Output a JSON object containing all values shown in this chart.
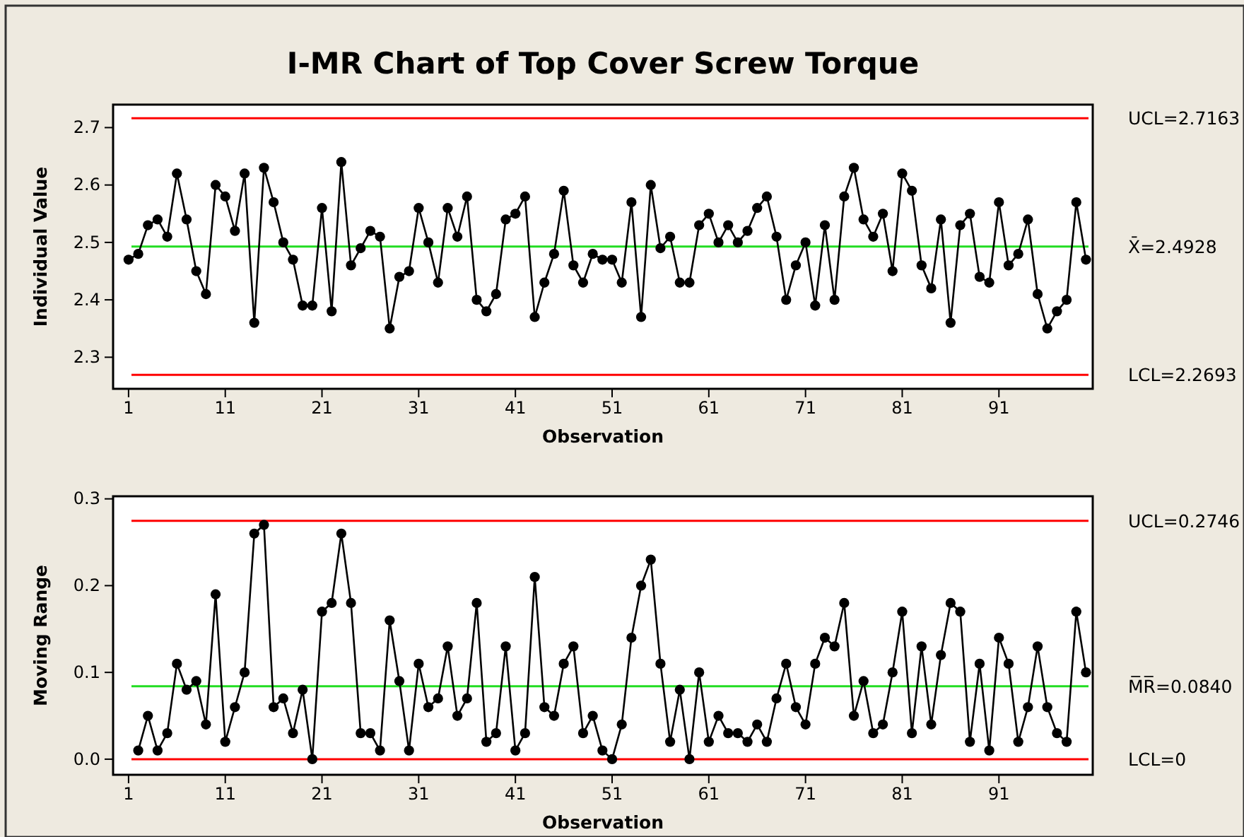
{
  "chart_data": [
    {
      "type": "line",
      "title": "I-MR Chart of Top Cover Screw Torque",
      "xlabel": "Observation",
      "ylabel": "Individual Value",
      "marker": "circle",
      "grid": false,
      "x": [
        1,
        2,
        3,
        4,
        5,
        6,
        7,
        8,
        9,
        10,
        11,
        12,
        13,
        14,
        15,
        16,
        17,
        18,
        19,
        20,
        21,
        22,
        23,
        24,
        25,
        26,
        27,
        28,
        29,
        30,
        31,
        32,
        33,
        34,
        35,
        36,
        37,
        38,
        39,
        40,
        41,
        42,
        43,
        44,
        45,
        46,
        47,
        48,
        49,
        50,
        51,
        52,
        53,
        54,
        55,
        56,
        57,
        58,
        59,
        60,
        61,
        62,
        63,
        64,
        65,
        66,
        67,
        68,
        69,
        70,
        71,
        72,
        73,
        74,
        75,
        76,
        77,
        78,
        79,
        80,
        81,
        82,
        83,
        84,
        85,
        86,
        87,
        88,
        89,
        90,
        91,
        92,
        93,
        94,
        95,
        96,
        97,
        98,
        99,
        100
      ],
      "xlim": [
        -0.6,
        100.7
      ],
      "xticks": [
        1,
        11,
        21,
        31,
        41,
        51,
        61,
        71,
        81,
        91
      ],
      "ylim": [
        2.245,
        2.74
      ],
      "yticks": [
        2.3,
        2.4,
        2.5,
        2.6,
        2.7
      ],
      "series": [
        {
          "color": "#000000",
          "values": [
            2.47,
            2.48,
            2.53,
            2.54,
            2.51,
            2.62,
            2.54,
            2.45,
            2.41,
            2.6,
            2.58,
            2.52,
            2.62,
            2.36,
            2.63,
            2.57,
            2.5,
            2.47,
            2.39,
            2.39,
            2.56,
            2.38,
            2.64,
            2.46,
            2.49,
            2.52,
            2.51,
            2.35,
            2.44,
            2.45,
            2.56,
            2.5,
            2.43,
            2.56,
            2.51,
            2.58,
            2.4,
            2.38,
            2.41,
            2.54,
            2.55,
            2.58,
            2.37,
            2.43,
            2.48,
            2.59,
            2.46,
            2.43,
            2.48,
            2.47,
            2.47,
            2.43,
            2.57,
            2.37,
            2.6,
            2.49,
            2.51,
            2.43,
            2.43,
            2.53,
            2.55,
            2.5,
            2.53,
            2.5,
            2.52,
            2.56,
            2.58,
            2.51,
            2.4,
            2.46,
            2.5,
            2.39,
            2.53,
            2.4,
            2.58,
            2.63,
            2.54,
            2.51,
            2.55,
            2.45,
            2.62,
            2.59,
            2.46,
            2.42,
            2.54,
            2.36,
            2.53,
            2.55,
            2.44,
            2.43,
            2.57,
            2.46,
            2.48,
            2.54,
            2.41,
            2.35,
            2.38,
            2.4,
            2.57,
            2.47
          ]
        }
      ],
      "ref_lines": [
        {
          "axis": "y",
          "value": 2.7163,
          "label": "UCL=2.7163",
          "color": "#ff0000"
        },
        {
          "axis": "y",
          "value": 2.4928,
          "label": "X̄=2.4928",
          "color": "#22dd22"
        },
        {
          "axis": "y",
          "value": 2.2693,
          "label": "LCL=2.2693",
          "color": "#ff0000"
        }
      ]
    },
    {
      "type": "line",
      "xlabel": "Observation",
      "ylabel": "Moving Range",
      "marker": "circle",
      "grid": false,
      "xlim": [
        -0.6,
        100.7
      ],
      "xticks": [
        1,
        11,
        21,
        31,
        41,
        51,
        61,
        71,
        81,
        91
      ],
      "ylim": [
        -0.018,
        0.303
      ],
      "yticks": [
        {
          "value": 0,
          "label": "0.0"
        },
        0.1,
        0.2,
        0.3
      ],
      "series": [
        {
          "color": "#000000",
          "x": [
            2,
            3,
            4,
            5,
            6,
            7,
            8,
            9,
            10,
            11,
            12,
            13,
            14,
            15,
            16,
            17,
            18,
            19,
            20,
            21,
            22,
            23,
            24,
            25,
            26,
            27,
            28,
            29,
            30,
            31,
            32,
            33,
            34,
            35,
            36,
            37,
            38,
            39,
            40,
            41,
            42,
            43,
            44,
            45,
            46,
            47,
            48,
            49,
            50,
            51,
            52,
            53,
            54,
            55,
            56,
            57,
            58,
            59,
            60,
            61,
            62,
            63,
            64,
            65,
            66,
            67,
            68,
            69,
            70,
            71,
            72,
            73,
            74,
            75,
            76,
            77,
            78,
            79,
            80,
            81,
            82,
            83,
            84,
            85,
            86,
            87,
            88,
            89,
            90,
            91,
            92,
            93,
            94,
            95,
            96,
            97,
            98,
            99,
            100
          ],
          "values": [
            0.01,
            0.05,
            0.01,
            0.03,
            0.11,
            0.08,
            0.09,
            0.04,
            0.19,
            0.02,
            0.06,
            0.1,
            0.26,
            0.27,
            0.06,
            0.07,
            0.03,
            0.08,
            0,
            0.17,
            0.18,
            0.26,
            0.18,
            0.03,
            0.03,
            0.01,
            0.16,
            0.09,
            0.01,
            0.11,
            0.06,
            0.07,
            0.13,
            0.05,
            0.07,
            0.18,
            0.02,
            0.03,
            0.13,
            0.01,
            0.03,
            0.21,
            0.06,
            0.05,
            0.11,
            0.13,
            0.03,
            0.05,
            0.01,
            0,
            0.04,
            0.14,
            0.2,
            0.23,
            0.11,
            0.02,
            0.08,
            0,
            0.1,
            0.02,
            0.05,
            0.03,
            0.03,
            0.02,
            0.04,
            0.02,
            0.07,
            0.11,
            0.06,
            0.04,
            0.11,
            0.14,
            0.13,
            0.18,
            0.05,
            0.09,
            0.03,
            0.04,
            0.1,
            0.17,
            0.03,
            0.13,
            0.04,
            0.12,
            0.18,
            0.17,
            0.02,
            0.11,
            0.01,
            0.14,
            0.11,
            0.02,
            0.06,
            0.13,
            0.06,
            0.03,
            0.02,
            0.17,
            0.1
          ]
        }
      ],
      "ref_lines": [
        {
          "axis": "y",
          "value": 0.2746,
          "label": "UCL=0.2746",
          "color": "#ff0000"
        },
        {
          "axis": "y",
          "value": 0.084,
          "label": "M̅R̅=0.0840",
          "color": "#22dd22"
        },
        {
          "axis": "y",
          "value": 0,
          "label": "LCL=0",
          "color": "#ff0000"
        }
      ]
    }
  ]
}
